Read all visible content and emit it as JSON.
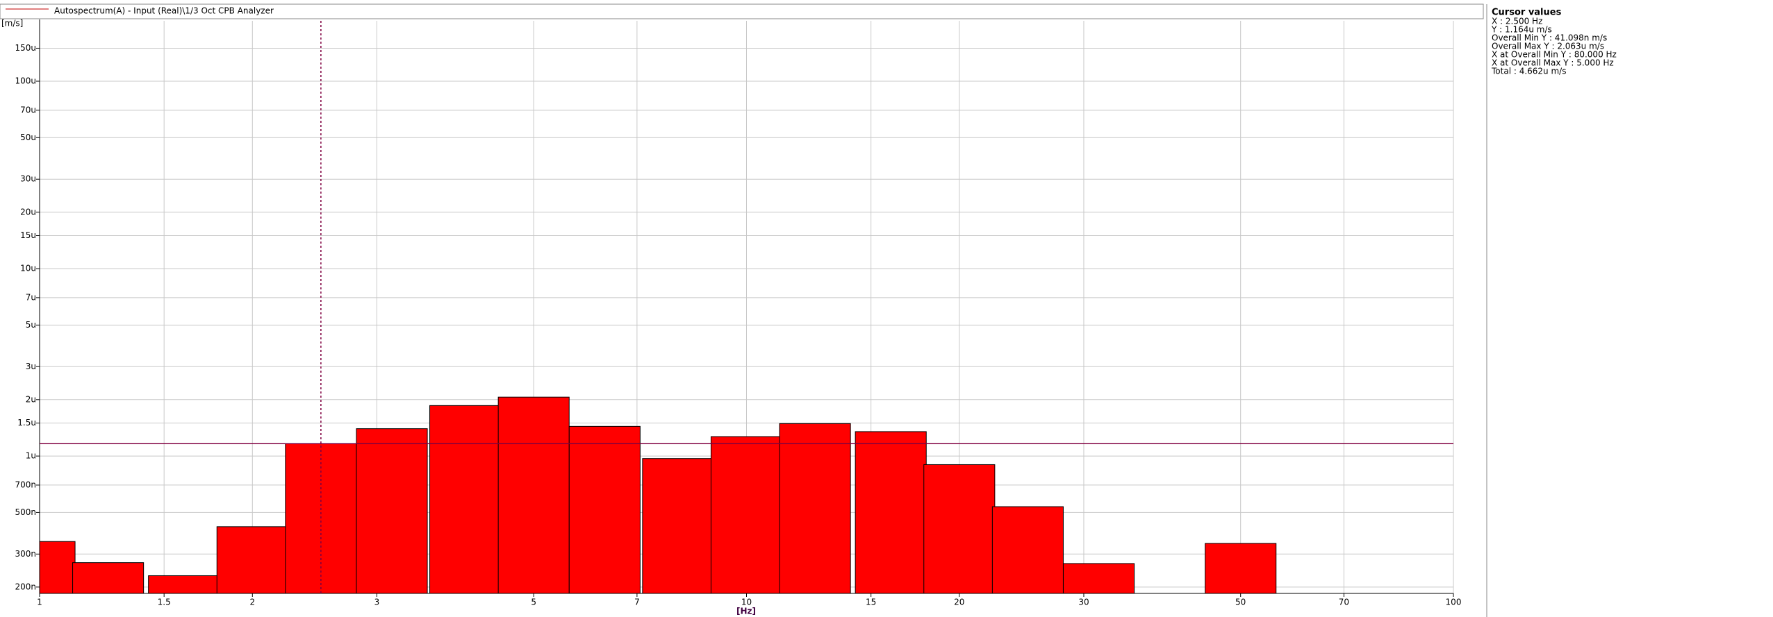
{
  "chart_data": {
    "type": "histogram",
    "legend_label": "Autospectrum(A) - Input (Real)\\1/3 Oct CPB Analyzer",
    "y_label": "[m/s]",
    "x_label": "[Hz]",
    "x": [
      1,
      1.25,
      1.6,
      2,
      2.5,
      3.15,
      4,
      5,
      6.3,
      8,
      10,
      12.5,
      16,
      20,
      25,
      31.5,
      40,
      50
    ],
    "values": [
      3.5e-07,
      2.7e-07,
      2.3e-07,
      4.2e-07,
      1.164e-06,
      1.4e-06,
      1.86e-06,
      2.063e-06,
      1.44e-06,
      9.7e-07,
      1.27e-06,
      1.49e-06,
      1.35e-06,
      9e-07,
      5.37e-07,
      2.67e-07,
      null,
      3.42e-07
    ],
    "color": "#ff0000",
    "xscale": "log",
    "yscale": "log",
    "grid": true,
    "xlim": [
      1,
      100
    ],
    "ylim": [
      1.85e-07,
      0.00021
    ],
    "xticks": [
      1,
      1.5,
      2,
      3,
      5,
      7,
      10,
      15,
      20,
      30,
      50,
      70,
      100
    ],
    "yticks": [
      {
        "value": 2e-07,
        "label": "200n"
      },
      {
        "value": 3e-07,
        "label": "300n"
      },
      {
        "value": 5e-07,
        "label": "500n"
      },
      {
        "value": 7e-07,
        "label": "700n"
      },
      {
        "value": 1e-06,
        "label": "1u"
      },
      {
        "value": 1.5e-06,
        "label": "1.5u"
      },
      {
        "value": 2e-06,
        "label": "2u"
      },
      {
        "value": 3e-06,
        "label": "3u"
      },
      {
        "value": 5e-06,
        "label": "5u"
      },
      {
        "value": 7e-06,
        "label": "7u"
      },
      {
        "value": 1e-05,
        "label": "10u"
      },
      {
        "value": 1.5e-05,
        "label": "15u"
      },
      {
        "value": 2e-05,
        "label": "20u"
      },
      {
        "value": 3e-05,
        "label": "30u"
      },
      {
        "value": 5e-05,
        "label": "50u"
      },
      {
        "value": 7e-05,
        "label": "70u"
      },
      {
        "value": 0.0001,
        "label": "100u"
      },
      {
        "value": 0.00015,
        "label": "150u"
      }
    ],
    "cursor": {
      "x": 2.5,
      "y": 1.164e-06,
      "color": "#800040"
    },
    "panel": {
      "title": "Cursor values",
      "lines": [
        "X : 2.500 Hz",
        "Y : 1.164u m/s",
        "Overall Min Y : 41.098n m/s",
        "Overall Max Y : 2.063u m/s",
        "X at Overall Min Y : 80.000 Hz",
        "X at Overall Max Y : 5.000 Hz",
        "Total : 4.662u m/s"
      ]
    }
  }
}
